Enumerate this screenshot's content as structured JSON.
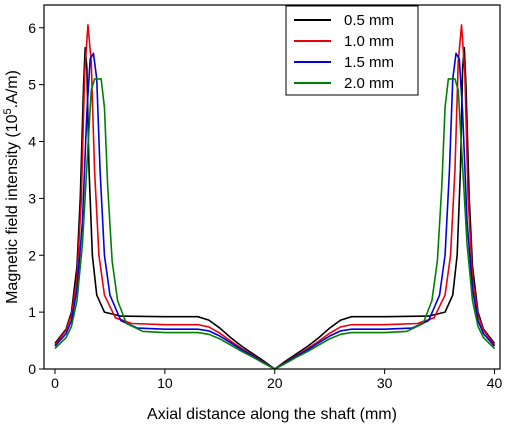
{
  "chart_data": {
    "type": "line",
    "title": "",
    "xlabel": "Axial distance along the shaft (mm)",
    "ylabel_main": "Magnetic field intensity (10",
    "ylabel_sup": "5",
    "ylabel_tail": ".A/m)",
    "xlim": [
      -1,
      40.5
    ],
    "ylim": [
      0,
      6.4
    ],
    "xticks": [
      0,
      10,
      20,
      30,
      40
    ],
    "yticks": [
      0,
      1,
      2,
      3,
      4,
      5,
      6
    ],
    "grid": false,
    "legend_position": "top-right",
    "series": [
      {
        "name": "0.5 mm",
        "color": "#000000",
        "points": [
          [
            0,
            0.45
          ],
          [
            1,
            0.7
          ],
          [
            1.5,
            1.0
          ],
          [
            2,
            1.8
          ],
          [
            2.3,
            3.0
          ],
          [
            2.6,
            5.0
          ],
          [
            2.75,
            5.65
          ],
          [
            2.9,
            5.3
          ],
          [
            3.1,
            3.5
          ],
          [
            3.4,
            2.0
          ],
          [
            3.8,
            1.3
          ],
          [
            4.5,
            1.0
          ],
          [
            6,
            0.93
          ],
          [
            10,
            0.92
          ],
          [
            13,
            0.92
          ],
          [
            14,
            0.86
          ],
          [
            15,
            0.72
          ],
          [
            16,
            0.55
          ],
          [
            17,
            0.4
          ],
          [
            18,
            0.27
          ],
          [
            19,
            0.14
          ],
          [
            20,
            0.0
          ],
          [
            21,
            0.14
          ],
          [
            22,
            0.27
          ],
          [
            23,
            0.4
          ],
          [
            24,
            0.55
          ],
          [
            25,
            0.72
          ],
          [
            26,
            0.86
          ],
          [
            27,
            0.92
          ],
          [
            30,
            0.92
          ],
          [
            34,
            0.93
          ],
          [
            35.5,
            1.0
          ],
          [
            36.2,
            1.3
          ],
          [
            36.6,
            2.0
          ],
          [
            36.9,
            3.5
          ],
          [
            37.1,
            5.3
          ],
          [
            37.25,
            5.65
          ],
          [
            37.4,
            5.0
          ],
          [
            37.7,
            3.0
          ],
          [
            38,
            1.8
          ],
          [
            38.5,
            1.0
          ],
          [
            39,
            0.7
          ],
          [
            40,
            0.45
          ]
        ]
      },
      {
        "name": "1.0 mm",
        "color": "#e8000b",
        "points": [
          [
            0,
            0.42
          ],
          [
            1,
            0.68
          ],
          [
            1.5,
            0.95
          ],
          [
            2,
            1.6
          ],
          [
            2.4,
            3.0
          ],
          [
            2.7,
            5.2
          ],
          [
            3.0,
            6.05
          ],
          [
            3.3,
            5.4
          ],
          [
            3.6,
            3.5
          ],
          [
            4.0,
            2.0
          ],
          [
            4.5,
            1.3
          ],
          [
            5.5,
            0.9
          ],
          [
            7,
            0.8
          ],
          [
            10,
            0.78
          ],
          [
            13,
            0.78
          ],
          [
            14,
            0.74
          ],
          [
            15,
            0.63
          ],
          [
            16,
            0.49
          ],
          [
            17,
            0.36
          ],
          [
            18,
            0.24
          ],
          [
            19,
            0.12
          ],
          [
            20,
            0.0
          ],
          [
            21,
            0.12
          ],
          [
            22,
            0.24
          ],
          [
            23,
            0.36
          ],
          [
            24,
            0.49
          ],
          [
            25,
            0.63
          ],
          [
            26,
            0.74
          ],
          [
            27,
            0.78
          ],
          [
            30,
            0.78
          ],
          [
            33,
            0.8
          ],
          [
            34.5,
            0.9
          ],
          [
            35.5,
            1.3
          ],
          [
            36,
            2.0
          ],
          [
            36.4,
            3.5
          ],
          [
            36.7,
            5.4
          ],
          [
            37.0,
            6.05
          ],
          [
            37.3,
            5.2
          ],
          [
            37.6,
            3.0
          ],
          [
            38,
            1.6
          ],
          [
            38.5,
            0.95
          ],
          [
            39,
            0.68
          ],
          [
            40,
            0.42
          ]
        ]
      },
      {
        "name": "1.5 mm",
        "color": "#0000e0",
        "points": [
          [
            0,
            0.4
          ],
          [
            1,
            0.62
          ],
          [
            1.5,
            0.85
          ],
          [
            2,
            1.4
          ],
          [
            2.5,
            2.6
          ],
          [
            2.9,
            4.5
          ],
          [
            3.2,
            5.45
          ],
          [
            3.5,
            5.55
          ],
          [
            3.8,
            5.1
          ],
          [
            4.1,
            3.5
          ],
          [
            4.5,
            2.0
          ],
          [
            5,
            1.3
          ],
          [
            6,
            0.85
          ],
          [
            7.5,
            0.72
          ],
          [
            10,
            0.7
          ],
          [
            13,
            0.7
          ],
          [
            14,
            0.67
          ],
          [
            15,
            0.58
          ],
          [
            16,
            0.46
          ],
          [
            17,
            0.34
          ],
          [
            18,
            0.23
          ],
          [
            19,
            0.11
          ],
          [
            20,
            0.0
          ],
          [
            21,
            0.11
          ],
          [
            22,
            0.23
          ],
          [
            23,
            0.34
          ],
          [
            24,
            0.46
          ],
          [
            25,
            0.58
          ],
          [
            26,
            0.67
          ],
          [
            27,
            0.7
          ],
          [
            30,
            0.7
          ],
          [
            32.5,
            0.72
          ],
          [
            34,
            0.85
          ],
          [
            35,
            1.3
          ],
          [
            35.5,
            2.0
          ],
          [
            35.9,
            3.5
          ],
          [
            36.2,
            5.1
          ],
          [
            36.5,
            5.55
          ],
          [
            36.8,
            5.45
          ],
          [
            37.1,
            4.5
          ],
          [
            37.5,
            2.6
          ],
          [
            38,
            1.4
          ],
          [
            38.5,
            0.85
          ],
          [
            39,
            0.62
          ],
          [
            40,
            0.4
          ]
        ]
      },
      {
        "name": "2.0 mm",
        "color": "#008000",
        "points": [
          [
            0,
            0.36
          ],
          [
            1,
            0.55
          ],
          [
            1.5,
            0.75
          ],
          [
            2,
            1.2
          ],
          [
            2.5,
            2.2
          ],
          [
            3,
            3.9
          ],
          [
            3.3,
            4.9
          ],
          [
            3.6,
            5.1
          ],
          [
            4.2,
            5.1
          ],
          [
            4.5,
            4.6
          ],
          [
            4.8,
            3.2
          ],
          [
            5.2,
            1.9
          ],
          [
            5.7,
            1.2
          ],
          [
            6.5,
            0.8
          ],
          [
            8,
            0.66
          ],
          [
            10,
            0.64
          ],
          [
            13,
            0.64
          ],
          [
            14,
            0.61
          ],
          [
            15,
            0.53
          ],
          [
            16,
            0.42
          ],
          [
            17,
            0.31
          ],
          [
            18,
            0.21
          ],
          [
            19,
            0.1
          ],
          [
            20,
            0.0
          ],
          [
            21,
            0.1
          ],
          [
            22,
            0.21
          ],
          [
            23,
            0.31
          ],
          [
            24,
            0.42
          ],
          [
            25,
            0.53
          ],
          [
            26,
            0.61
          ],
          [
            27,
            0.64
          ],
          [
            30,
            0.64
          ],
          [
            32,
            0.66
          ],
          [
            33.5,
            0.8
          ],
          [
            34.3,
            1.2
          ],
          [
            34.8,
            1.9
          ],
          [
            35.2,
            3.2
          ],
          [
            35.5,
            4.6
          ],
          [
            35.8,
            5.1
          ],
          [
            36.4,
            5.1
          ],
          [
            36.7,
            4.9
          ],
          [
            37,
            3.9
          ],
          [
            37.5,
            2.2
          ],
          [
            38,
            1.2
          ],
          [
            38.5,
            0.75
          ],
          [
            39,
            0.55
          ],
          [
            40,
            0.36
          ]
        ]
      }
    ]
  }
}
